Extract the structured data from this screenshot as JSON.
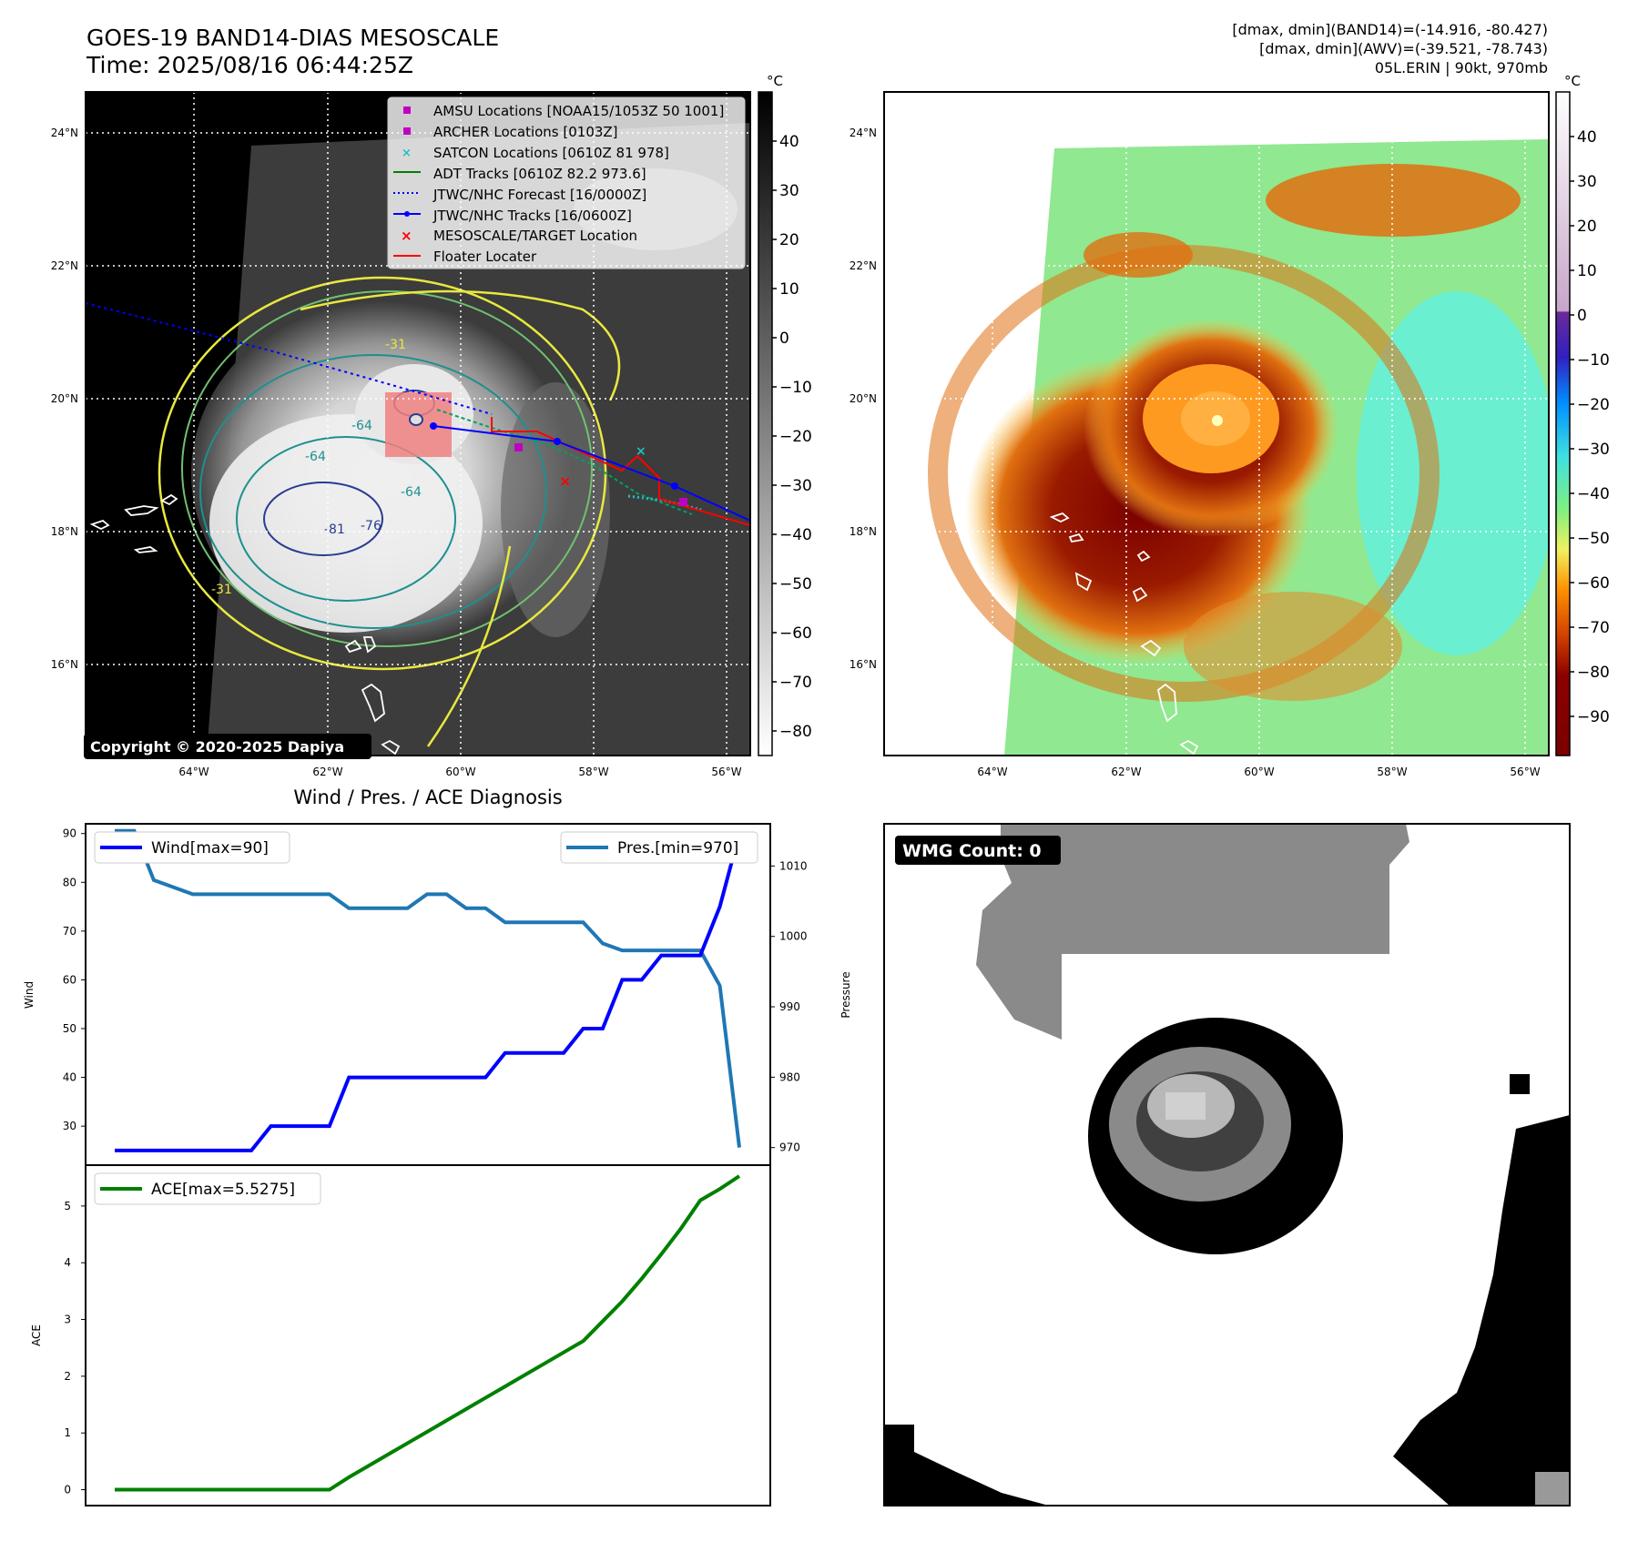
{
  "header": {
    "title_line1": "GOES-19 BAND14-DIAS MESOSCALE",
    "title_line2": "Time: 2025/08/16 06:44:25Z",
    "info_line1": "[dmax, dmin](BAND14)=(-14.916, -80.427)",
    "info_line2": "[dmax, dmin](AWV)=(-39.521, -78.743)",
    "info_line3": "05L.ERIN | 90kt, 970mb"
  },
  "map_panels": {
    "lat_ticks": [
      "24°N",
      "22°N",
      "20°N",
      "18°N",
      "16°N"
    ],
    "lon_ticks": [
      "64°W",
      "62°W",
      "60°W",
      "58°W",
      "56°W"
    ],
    "copyright": "Copyright © 2020-2025 Dapiya"
  },
  "legend": {
    "items": [
      {
        "label": "AMSU Locations [NOAA15/1053Z 50 1001]",
        "marker": "square",
        "color": "#c000c0"
      },
      {
        "label": "ARCHER Locations [0103Z]",
        "marker": "square",
        "color": "#c000c0"
      },
      {
        "label": "SATCON Locations [0610Z 81 978]",
        "marker": "x",
        "color": "#20c0c0"
      },
      {
        "label": "ADT Tracks [0610Z 82.2 973.6]",
        "marker": "line",
        "color": "#008000"
      },
      {
        "label": "JTWC/NHC Forecast [16/0000Z]",
        "marker": "dotted",
        "color": "#0000ff"
      },
      {
        "label": "JTWC/NHC Tracks [16/0600Z]",
        "marker": "line-dot",
        "color": "#0000ff"
      },
      {
        "label": "MESOSCALE/TARGET Location",
        "marker": "x",
        "color": "#ff0000"
      },
      {
        "label": "Floater Locater",
        "marker": "line",
        "color": "#ff0000"
      }
    ]
  },
  "colorbar_gray": {
    "unit": "°C",
    "ticks": [
      "40",
      "30",
      "20",
      "10",
      "0",
      "−10",
      "−20",
      "−30",
      "−40",
      "−50",
      "−60",
      "−70",
      "−80"
    ]
  },
  "colorbar_color": {
    "unit": "°C",
    "ticks": [
      "40",
      "30",
      "20",
      "10",
      "0",
      "−10",
      "−20",
      "−30",
      "−40",
      "−50",
      "−60",
      "−70",
      "−80",
      "−90"
    ]
  },
  "contour_labels": [
    "-31",
    "-64",
    "-64",
    "-76",
    "-81",
    "-64",
    "-31"
  ],
  "diagnosis": {
    "title": "Wind / Pres. / ACE Diagnosis",
    "wind_legend": "Wind[max=90]",
    "pres_legend": "Pres.[min=970]",
    "ace_legend": "ACE[max=5.5275]",
    "wind_ylabel": "Wind",
    "pres_ylabel": "Pressure",
    "ace_ylabel": "ACE",
    "wind_ticks": [
      "90",
      "80",
      "70",
      "60",
      "50",
      "40",
      "30"
    ],
    "pres_ticks": [
      "1010",
      "1000",
      "990",
      "980",
      "970"
    ],
    "ace_ticks": [
      "5",
      "4",
      "3",
      "2",
      "1",
      "0"
    ]
  },
  "wmg": {
    "label": "WMG Count: 0"
  },
  "chart_data": [
    {
      "type": "line",
      "title": "Wind / Pres. / ACE Diagnosis",
      "x": [
        0,
        1,
        2,
        3,
        4,
        5,
        6,
        7,
        8,
        9,
        10,
        11,
        12,
        13,
        14,
        15,
        16,
        17,
        18,
        19,
        20,
        21,
        22,
        23,
        24,
        25,
        26,
        27,
        28,
        29,
        30,
        31,
        32
      ],
      "series": [
        {
          "name": "Wind[max=90]",
          "axis": "left",
          "ylim": [
            22,
            92
          ],
          "color": "#0000ff",
          "values": [
            25,
            25,
            25,
            25,
            25,
            25,
            25,
            25,
            30,
            30,
            30,
            30,
            40,
            40,
            40,
            40,
            40,
            40,
            40,
            40,
            45,
            45,
            45,
            45,
            50,
            50,
            60,
            60,
            65,
            65,
            65,
            75,
            90
          ]
        },
        {
          "name": "Pres.[min=970]",
          "axis": "right",
          "ylim": [
            967.5,
            1016
          ],
          "color": "#1f77b4",
          "values": [
            1015,
            1015,
            1008,
            1007,
            1006,
            1006,
            1006,
            1006,
            1006,
            1006,
            1006,
            1006,
            1004,
            1004,
            1004,
            1004,
            1006,
            1006,
            1004,
            1004,
            1002,
            1002,
            1002,
            1002,
            1002,
            999,
            998,
            998,
            998,
            998,
            998,
            993,
            970
          ]
        }
      ]
    },
    {
      "type": "line",
      "x": [
        0,
        1,
        2,
        3,
        4,
        5,
        6,
        7,
        8,
        9,
        10,
        11,
        12,
        13,
        14,
        15,
        16,
        17,
        18,
        19,
        20,
        21,
        22,
        23,
        24,
        25,
        26,
        27,
        28,
        29,
        30,
        31,
        32
      ],
      "ylim": [
        -0.28,
        5.72
      ],
      "series": [
        {
          "name": "ACE[max=5.5275]",
          "color": "#008000",
          "values": [
            0,
            0,
            0,
            0,
            0,
            0,
            0,
            0,
            0,
            0,
            0,
            0,
            0.22,
            0.42,
            0.62,
            0.82,
            1.02,
            1.22,
            1.42,
            1.62,
            1.82,
            2.02,
            2.22,
            2.42,
            2.62,
            2.97,
            3.32,
            3.72,
            4.15,
            4.6,
            5.1,
            5.3,
            5.5275
          ]
        }
      ]
    }
  ]
}
